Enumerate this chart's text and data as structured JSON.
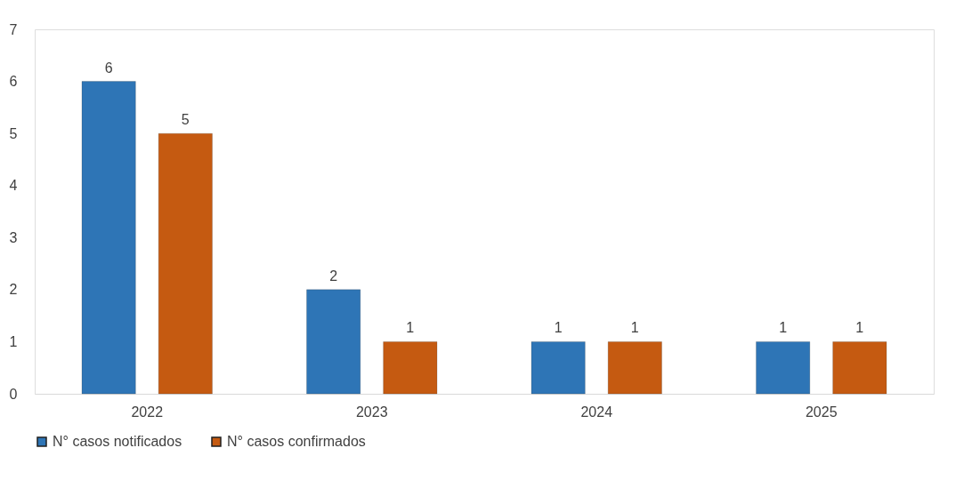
{
  "chart_data": {
    "type": "bar",
    "categories": [
      "2022",
      "2023",
      "2024",
      "2025"
    ],
    "series": [
      {
        "name": "N° casos notificados",
        "color": "#2e75b6",
        "values": [
          6,
          2,
          1,
          1
        ]
      },
      {
        "name": "N° casos confirmados",
        "color": "#c55a11",
        "values": [
          5,
          1,
          1,
          1
        ]
      }
    ],
    "ylim": [
      0,
      7
    ],
    "yticks": [
      0,
      1,
      2,
      3,
      4,
      5,
      6,
      7
    ],
    "grid": false,
    "legend": "bottom",
    "data_labels": true
  }
}
